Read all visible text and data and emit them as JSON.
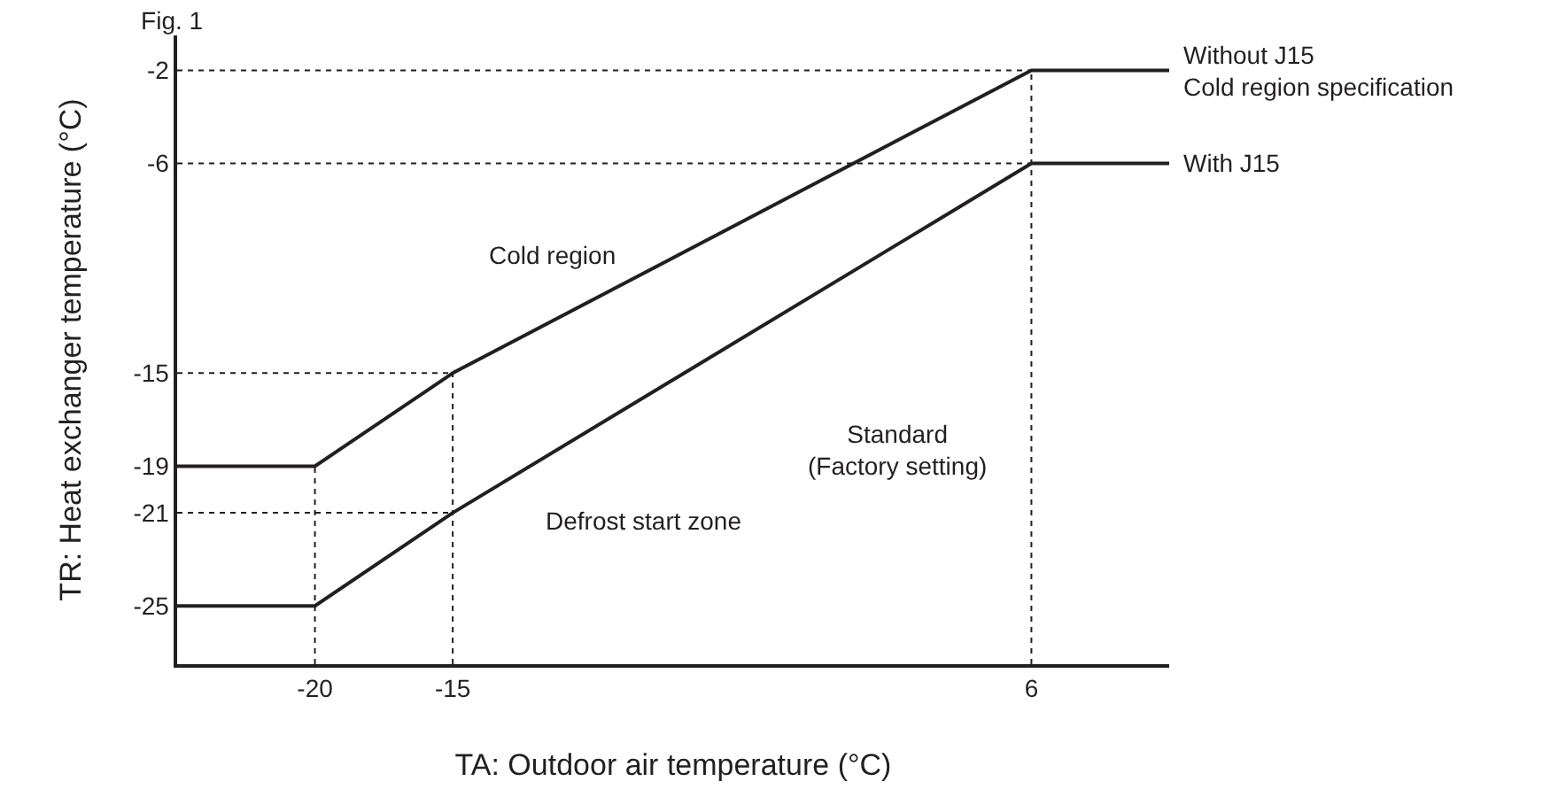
{
  "chart_data": {
    "type": "line",
    "title": "Fig. 1",
    "xlabel": "TA: Outdoor air temperature (°C)",
    "ylabel": "TR: Heat exchanger temperature (°C)",
    "x": [
      -25,
      -20,
      -15,
      6,
      11
    ],
    "series": [
      {
        "name": "Without J15\nCold region specification",
        "color": "#231f20",
        "values": [
          -19,
          -19,
          -15,
          -2,
          -2
        ]
      },
      {
        "name": "With J15",
        "color": "#231f20",
        "values": [
          -25,
          -25,
          -21,
          -6,
          -6
        ]
      }
    ],
    "xlim": [
      -25,
      11
    ],
    "ylim": [
      -27.5,
      -0.5
    ],
    "xticks": [
      -20,
      -15,
      6
    ],
    "yticks": [
      -2,
      -6,
      -15,
      -19,
      -21,
      -25
    ],
    "ref_lines": [
      {
        "axis": "y",
        "value": -2,
        "label": null,
        "line_style": "dotted"
      },
      {
        "axis": "y",
        "value": -6,
        "label": null,
        "line_style": "dotted"
      },
      {
        "axis": "y",
        "value": -15,
        "label": null,
        "line_style": "dotted"
      },
      {
        "axis": "y",
        "value": -21,
        "label": null,
        "line_style": "dotted"
      },
      {
        "axis": "x",
        "value": -20,
        "label": null,
        "line_style": "dotted"
      },
      {
        "axis": "x",
        "value": -15,
        "label": null,
        "line_style": "dotted"
      },
      {
        "axis": "x",
        "value": 6,
        "label": null,
        "line_style": "dotted"
      }
    ],
    "annotations": [
      "Cold region",
      "Standard\n(Factory setting)",
      "Defrost start zone"
    ],
    "grid": false,
    "legend": false,
    "marker": "none",
    "line_style": "solid"
  }
}
